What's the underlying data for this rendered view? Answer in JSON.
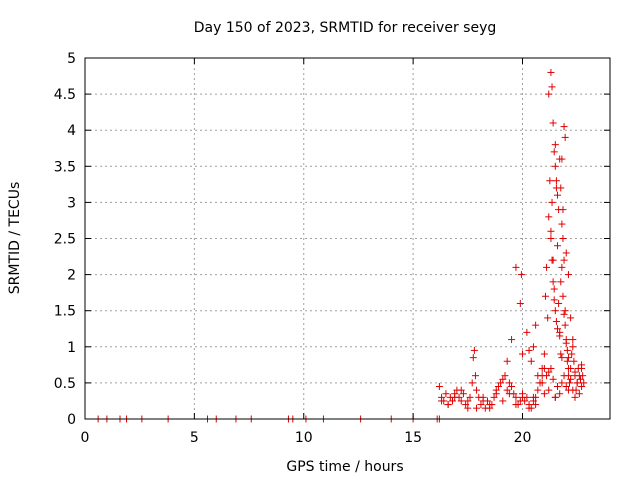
{
  "chart_data": {
    "type": "scatter",
    "title": "Day 150 of 2023, SRMTID for receiver seyg",
    "xlabel": "GPS time / hours",
    "ylabel": "SRMTID / TECUs",
    "xlim": [
      0,
      24
    ],
    "ylim": [
      0,
      5
    ],
    "xticks": [
      0,
      5,
      10,
      15,
      20
    ],
    "xtick_labels": [
      "0",
      "5",
      "10",
      "15",
      "20"
    ],
    "yticks": [
      0,
      0.5,
      1,
      1.5,
      2,
      2.5,
      3,
      3.5,
      4,
      4.5,
      5
    ],
    "ytick_labels": [
      "0",
      "0.5",
      "1",
      "1.5",
      "2",
      "2.5",
      "3",
      "3.5",
      "4",
      "4.5",
      "5"
    ],
    "grid": true,
    "marker": "+",
    "color": "#e00000",
    "series": [
      {
        "name": "seyg",
        "x": [
          0.6,
          1.0,
          1.6,
          1.9,
          2.6,
          3.8,
          5.6,
          6.0,
          6.9,
          7.6,
          9.3,
          9.5,
          10.1,
          10.9,
          12.6,
          14.0,
          15.0,
          16.1,
          16.2,
          16.2,
          16.3,
          16.4,
          16.5,
          16.6,
          16.7,
          16.8,
          16.9,
          17.0,
          17.1,
          17.2,
          17.3,
          17.4,
          17.5,
          17.6,
          17.7,
          17.75,
          17.8,
          17.85,
          17.9,
          18.0,
          18.1,
          18.2,
          18.3,
          18.4,
          18.5,
          18.6,
          18.7,
          18.8,
          18.9,
          19.0,
          19.1,
          19.2,
          19.3,
          19.4,
          19.5,
          19.6,
          19.7,
          19.8,
          19.9,
          20.0,
          20.1,
          20.2,
          20.3,
          20.4,
          20.5,
          20.6,
          20.7,
          20.8,
          20.9,
          21.0,
          19.3,
          19.5,
          19.7,
          19.9,
          19.95,
          20.0,
          20.2,
          20.3,
          20.4,
          20.5,
          20.6,
          20.7,
          20.8,
          20.9,
          21.0,
          21.05,
          21.1,
          21.15,
          21.2,
          21.25,
          21.3,
          21.35,
          21.4,
          21.45,
          21.5,
          21.55,
          21.6,
          21.65,
          21.7,
          21.75,
          21.8,
          21.85,
          21.9,
          21.95,
          22.0,
          22.05,
          22.1,
          22.15,
          22.2,
          22.25,
          22.3,
          22.35,
          22.4,
          22.45,
          22.5,
          22.55,
          22.6,
          22.65,
          22.7,
          22.75,
          22.8,
          21.2,
          21.3,
          21.35,
          21.4,
          21.45,
          21.5,
          21.55,
          21.6,
          21.65,
          21.7,
          21.75,
          21.8,
          21.85,
          21.9,
          21.95,
          22.0,
          22.1,
          22.2,
          22.3,
          20.5,
          20.8,
          21.0,
          21.1,
          21.2,
          21.3,
          21.4,
          21.5,
          21.6,
          21.7,
          21.8,
          21.9,
          22.0,
          22.1,
          22.2,
          22.3,
          22.4,
          22.5,
          22.6,
          22.7,
          21.3,
          21.35,
          21.4,
          21.45,
          21.5,
          21.55,
          21.6,
          21.7,
          21.75,
          21.8,
          21.85,
          21.9,
          21.95,
          22.0,
          22.05,
          22.1,
          16.3,
          16.6,
          16.9,
          17.2,
          17.5,
          17.9,
          18.2,
          18.5,
          18.8,
          19.1,
          19.4,
          19.7,
          20.0,
          20.3,
          20.6,
          20.9,
          21.2,
          21.5,
          21.8,
          22.1,
          22.4,
          22.7
        ],
        "y": [
          0,
          0,
          0,
          0,
          0,
          0,
          0,
          0,
          0,
          0,
          0,
          0,
          0,
          0,
          0,
          0,
          0,
          0,
          0,
          0.45,
          0.3,
          0.25,
          0.35,
          0.2,
          0.3,
          0.25,
          0.35,
          0.4,
          0.3,
          0.25,
          0.35,
          0.2,
          0.15,
          0.3,
          0.5,
          0.85,
          0.95,
          0.6,
          0.4,
          0.3,
          0.2,
          0.25,
          0.15,
          0.25,
          0.15,
          0.2,
          0.3,
          0.35,
          0.45,
          0.5,
          0.55,
          0.6,
          0.4,
          0.5,
          0.45,
          0.35,
          0.3,
          0.2,
          0.25,
          0.35,
          0.25,
          0.3,
          0.2,
          0.15,
          0.25,
          0.3,
          0.4,
          0.5,
          0.6,
          0.7,
          0.8,
          1.1,
          2.1,
          1.6,
          2.0,
          0.9,
          1.2,
          0.95,
          0.8,
          1.0,
          1.3,
          0.6,
          0.5,
          0.7,
          0.9,
          1.7,
          2.1,
          1.4,
          2.8,
          3.3,
          2.5,
          3.0,
          2.2,
          1.8,
          3.8,
          3.2,
          2.4,
          1.6,
          1.2,
          0.9,
          3.6,
          2.9,
          2.2,
          1.5,
          1.1,
          0.8,
          0.6,
          0.5,
          0.7,
          0.9,
          1.0,
          0.8,
          0.6,
          0.4,
          0.5,
          0.7,
          0.6,
          0.55,
          0.7,
          0.6,
          0.5,
          4.5,
          4.8,
          4.6,
          4.1,
          3.7,
          3.5,
          3.3,
          3.1,
          2.9,
          3.6,
          3.2,
          2.7,
          2.5,
          4.05,
          3.9,
          2.3,
          2.0,
          1.4,
          1.1,
          0.3,
          0.5,
          0.35,
          0.6,
          0.4,
          0.7,
          0.55,
          0.3,
          0.45,
          0.35,
          0.5,
          0.6,
          0.45,
          0.7,
          0.55,
          0.4,
          0.65,
          0.5,
          0.35,
          0.45,
          2.6,
          2.2,
          1.9,
          1.65,
          1.5,
          1.35,
          1.25,
          1.15,
          1.9,
          2.1,
          1.7,
          1.45,
          1.3,
          1.05,
          0.95,
          0.85,
          0.25,
          0.2,
          0.3,
          0.4,
          0.25,
          0.15,
          0.3,
          0.2,
          0.4,
          0.25,
          0.35,
          0.2,
          0.3,
          0.15,
          0.2,
          0.5,
          0.65,
          0.3,
          0.85,
          0.4,
          0.3,
          0.75
        ]
      }
    ]
  }
}
